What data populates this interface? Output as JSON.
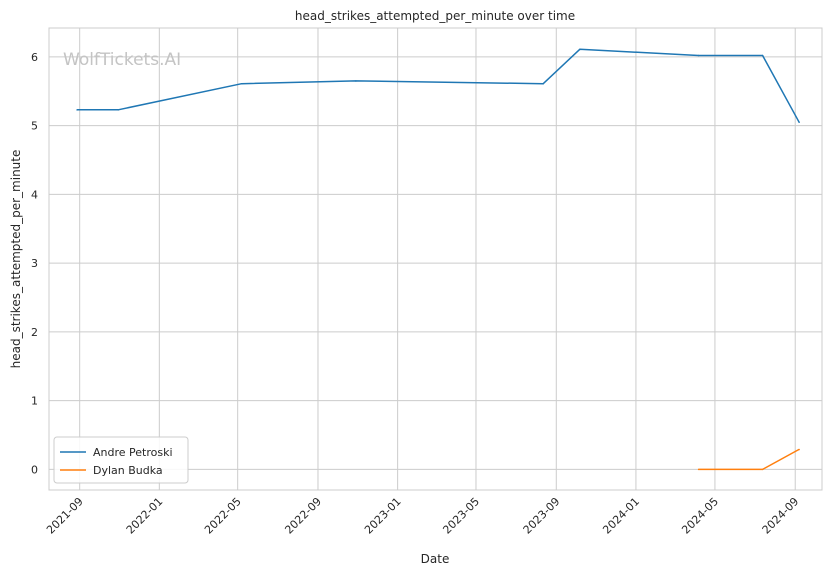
{
  "chart_data": {
    "type": "line",
    "title": "head_strikes_attempted_per_minute over time",
    "xlabel": "Date",
    "ylabel": "head_strikes_attempted_per_minute",
    "watermark": "WolfTickets.AI",
    "xlim": [
      "2021-07-16",
      "2024-10-12"
    ],
    "ylim": [
      -0.3,
      6.42
    ],
    "x_ticks": [
      "2021-09",
      "2022-01",
      "2022-05",
      "2022-09",
      "2023-01",
      "2023-05",
      "2023-09",
      "2024-01",
      "2024-05",
      "2024-09"
    ],
    "y_ticks": [
      0,
      1,
      2,
      3,
      4,
      5,
      6
    ],
    "grid": true,
    "legend_position": "lower-left",
    "series": [
      {
        "name": "Andre Petroski",
        "color": "#1f77b4",
        "points": [
          {
            "x": "2021-08-28",
            "y": 5.23
          },
          {
            "x": "2021-10-30",
            "y": 5.23
          },
          {
            "x": "2022-05-07",
            "y": 5.61
          },
          {
            "x": "2022-10-29",
            "y": 5.65
          },
          {
            "x": "2023-08-12",
            "y": 5.61
          },
          {
            "x": "2023-10-07",
            "y": 6.11
          },
          {
            "x": "2024-04-06",
            "y": 6.02
          },
          {
            "x": "2024-07-13",
            "y": 6.02
          },
          {
            "x": "2024-09-07",
            "y": 5.05
          }
        ]
      },
      {
        "name": "Dylan Budka",
        "color": "#ff7f0e",
        "points": [
          {
            "x": "2024-04-06",
            "y": 0.0
          },
          {
            "x": "2024-07-13",
            "y": 0.0
          },
          {
            "x": "2024-09-07",
            "y": 0.29
          }
        ]
      }
    ]
  }
}
